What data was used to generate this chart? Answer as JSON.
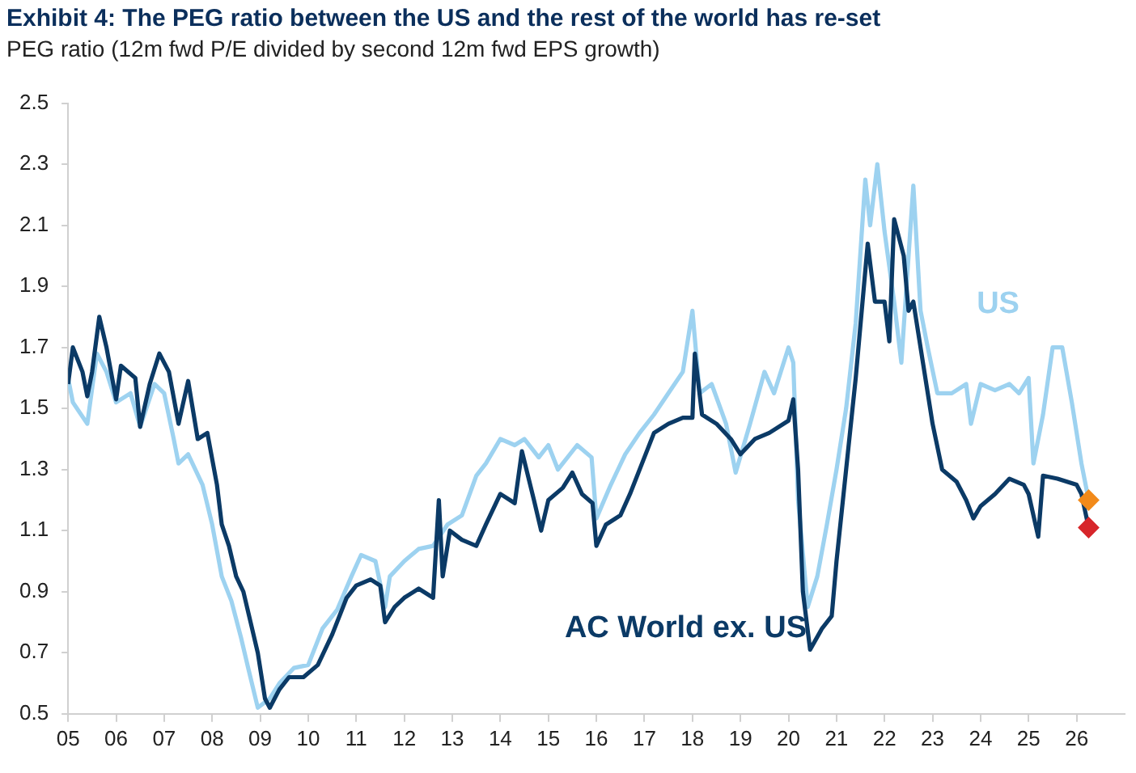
{
  "chart_data": {
    "type": "line",
    "title": "Exhibit 4: The PEG ratio between the US and the rest of the world has re-set",
    "subtitle": "PEG ratio (12m fwd P/E divided by second 12m fwd EPS growth)",
    "xlim": [
      2005,
      2027
    ],
    "xticks": [
      {
        "value": 2005,
        "label": "05"
      },
      {
        "value": 2006,
        "label": "06"
      },
      {
        "value": 2007,
        "label": "07"
      },
      {
        "value": 2008,
        "label": "08"
      },
      {
        "value": 2009,
        "label": "09"
      },
      {
        "value": 2010,
        "label": "10"
      },
      {
        "value": 2011,
        "label": "11"
      },
      {
        "value": 2012,
        "label": "12"
      },
      {
        "value": 2013,
        "label": "13"
      },
      {
        "value": 2014,
        "label": "14"
      },
      {
        "value": 2015,
        "label": "15"
      },
      {
        "value": 2016,
        "label": "16"
      },
      {
        "value": 2017,
        "label": "17"
      },
      {
        "value": 2018,
        "label": "18"
      },
      {
        "value": 2019,
        "label": "19"
      },
      {
        "value": 2020,
        "label": "20"
      },
      {
        "value": 2021,
        "label": "21"
      },
      {
        "value": 2022,
        "label": "22"
      },
      {
        "value": 2023,
        "label": "23"
      },
      {
        "value": 2024,
        "label": "24"
      },
      {
        "value": 2025,
        "label": "25"
      },
      {
        "value": 2026,
        "label": "26"
      }
    ],
    "ylim": [
      0.5,
      2.5
    ],
    "yticks": [
      0.5,
      0.7,
      0.9,
      1.1,
      1.3,
      1.5,
      1.7,
      1.9,
      2.1,
      2.3,
      2.5
    ],
    "grid": false,
    "legend": false,
    "line_style": "solid",
    "series": [
      {
        "name": "US",
        "color": "#9dd2f0",
        "type": "line",
        "marker": "none",
        "x": [
          2005.0,
          2005.1,
          2005.4,
          2005.6,
          2005.8,
          2006.0,
          2006.3,
          2006.5,
          2006.8,
          2007.0,
          2007.2,
          2007.3,
          2007.5,
          2007.8,
          2008.0,
          2008.2,
          2008.4,
          2008.6,
          2008.75,
          2008.95,
          2009.2,
          2009.4,
          2009.7,
          2010.0,
          2010.3,
          2010.6,
          2010.9,
          2011.1,
          2011.4,
          2011.6,
          2011.7,
          2012.0,
          2012.3,
          2012.6,
          2012.9,
          2013.2,
          2013.5,
          2013.7,
          2014.0,
          2014.3,
          2014.5,
          2014.8,
          2015.0,
          2015.2,
          2015.6,
          2015.9,
          2016.0,
          2016.3,
          2016.6,
          2016.9,
          2017.2,
          2017.5,
          2017.8,
          2018.0,
          2018.15,
          2018.4,
          2018.7,
          2018.9,
          2019.2,
          2019.5,
          2019.7,
          2020.0,
          2020.1,
          2020.2,
          2020.4,
          2020.6,
          2020.8,
          2021.0,
          2021.2,
          2021.4,
          2021.6,
          2021.7,
          2021.85,
          2022.0,
          2022.2,
          2022.35,
          2022.5,
          2022.6,
          2022.75,
          2022.9,
          2023.1,
          2023.4,
          2023.7,
          2023.8,
          2024.0,
          2024.3,
          2024.6,
          2024.8,
          2025.0,
          2025.1,
          2025.3,
          2025.5,
          2025.7,
          2025.9,
          2026.1,
          2026.25
        ],
        "values": [
          1.6,
          1.52,
          1.45,
          1.68,
          1.62,
          1.52,
          1.55,
          1.44,
          1.58,
          1.55,
          1.4,
          1.32,
          1.35,
          1.25,
          1.12,
          0.95,
          0.87,
          0.75,
          0.65,
          0.52,
          0.55,
          0.6,
          0.65,
          0.66,
          0.78,
          0.84,
          0.95,
          1.02,
          1.0,
          0.85,
          0.95,
          1.0,
          1.04,
          1.05,
          1.12,
          1.15,
          1.28,
          1.32,
          1.4,
          1.38,
          1.4,
          1.34,
          1.38,
          1.3,
          1.38,
          1.34,
          1.14,
          1.25,
          1.35,
          1.42,
          1.48,
          1.55,
          1.62,
          1.82,
          1.55,
          1.58,
          1.45,
          1.29,
          1.45,
          1.62,
          1.55,
          1.7,
          1.65,
          1.2,
          0.85,
          0.95,
          1.12,
          1.3,
          1.5,
          1.78,
          2.25,
          2.1,
          2.3,
          2.08,
          1.85,
          1.65,
          2.0,
          2.23,
          1.82,
          1.7,
          1.55,
          1.55,
          1.58,
          1.45,
          1.58,
          1.56,
          1.58,
          1.55,
          1.6,
          1.32,
          1.48,
          1.7,
          1.7,
          1.52,
          1.32,
          1.2
        ]
      },
      {
        "name": "AC World ex. US",
        "color": "#0b3a66",
        "type": "line",
        "marker": "none",
        "x": [
          2005.0,
          2005.1,
          2005.3,
          2005.4,
          2005.5,
          2005.65,
          2005.8,
          2006.0,
          2006.1,
          2006.4,
          2006.5,
          2006.7,
          2006.9,
          2007.1,
          2007.3,
          2007.5,
          2007.7,
          2007.9,
          2008.1,
          2008.2,
          2008.35,
          2008.5,
          2008.65,
          2008.8,
          2008.95,
          2009.1,
          2009.2,
          2009.4,
          2009.6,
          2009.9,
          2010.2,
          2010.5,
          2010.8,
          2011.0,
          2011.3,
          2011.5,
          2011.6,
          2011.8,
          2012.0,
          2012.3,
          2012.6,
          2012.72,
          2012.8,
          2012.95,
          2013.2,
          2013.5,
          2013.7,
          2014.0,
          2014.3,
          2014.45,
          2014.7,
          2014.85,
          2015.0,
          2015.3,
          2015.5,
          2015.7,
          2015.92,
          2016.0,
          2016.2,
          2016.5,
          2016.7,
          2017.0,
          2017.2,
          2017.5,
          2017.8,
          2018.0,
          2018.05,
          2018.2,
          2018.5,
          2018.8,
          2019.0,
          2019.3,
          2019.6,
          2020.0,
          2020.1,
          2020.2,
          2020.3,
          2020.45,
          2020.7,
          2020.9,
          2021.0,
          2021.2,
          2021.4,
          2021.65,
          2021.8,
          2022.0,
          2022.1,
          2022.2,
          2022.4,
          2022.5,
          2022.6,
          2022.8,
          2023.0,
          2023.2,
          2023.5,
          2023.7,
          2023.85,
          2024.0,
          2024.3,
          2024.6,
          2024.9,
          2025.0,
          2025.2,
          2025.3,
          2025.6,
          2026.0,
          2026.1,
          2026.25
        ],
        "values": [
          1.58,
          1.7,
          1.62,
          1.54,
          1.62,
          1.8,
          1.7,
          1.53,
          1.64,
          1.6,
          1.44,
          1.58,
          1.68,
          1.62,
          1.45,
          1.59,
          1.4,
          1.42,
          1.25,
          1.12,
          1.05,
          0.95,
          0.9,
          0.8,
          0.7,
          0.55,
          0.52,
          0.58,
          0.62,
          0.62,
          0.66,
          0.76,
          0.88,
          0.92,
          0.94,
          0.92,
          0.8,
          0.85,
          0.88,
          0.91,
          0.88,
          1.2,
          0.95,
          1.1,
          1.07,
          1.05,
          1.12,
          1.22,
          1.19,
          1.36,
          1.2,
          1.1,
          1.2,
          1.24,
          1.29,
          1.22,
          1.19,
          1.05,
          1.12,
          1.15,
          1.22,
          1.34,
          1.42,
          1.45,
          1.47,
          1.47,
          1.68,
          1.48,
          1.45,
          1.4,
          1.35,
          1.4,
          1.42,
          1.46,
          1.53,
          1.3,
          0.9,
          0.71,
          0.78,
          0.82,
          1.0,
          1.3,
          1.6,
          2.04,
          1.85,
          1.85,
          1.72,
          2.12,
          2.0,
          1.82,
          1.85,
          1.65,
          1.45,
          1.3,
          1.26,
          1.2,
          1.14,
          1.18,
          1.22,
          1.27,
          1.25,
          1.22,
          1.08,
          1.28,
          1.27,
          1.25,
          1.22,
          1.11
        ]
      },
      {
        "color": "#f28a1a",
        "type": "scatter",
        "marker": "diamond",
        "x": [
          2026.25
        ],
        "values": [
          1.2
        ]
      },
      {
        "color": "#d7262b",
        "type": "scatter",
        "marker": "diamond",
        "x": [
          2026.25
        ],
        "values": [
          1.11
        ]
      }
    ]
  }
}
